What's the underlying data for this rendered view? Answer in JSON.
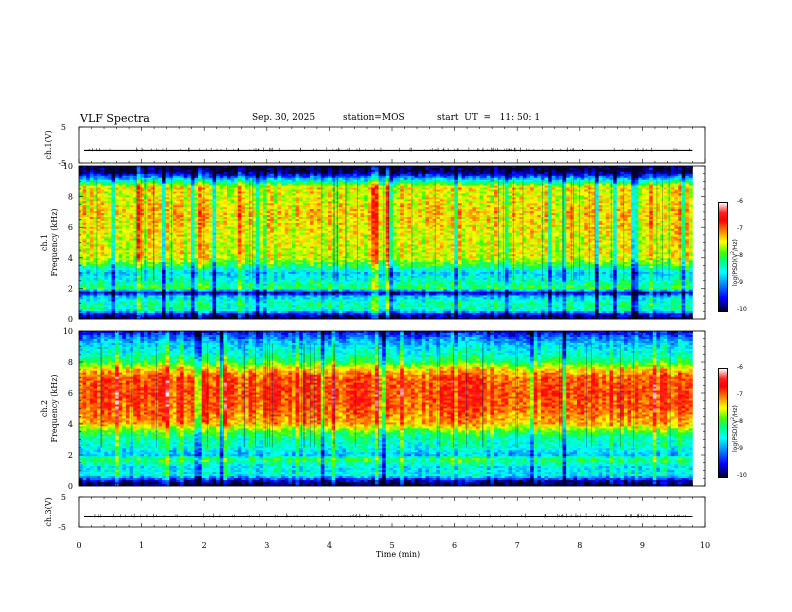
{
  "header": {
    "title": "VLF Spectra",
    "date": "Sep. 30, 2025",
    "station": "station=MOS",
    "start": "start  UT  =   11: 50: 1"
  },
  "chart_data": [
    {
      "type": "line",
      "panel": "ch1-voltage",
      "ylabel": "ch.1(V)",
      "ylim": [
        -5,
        5
      ],
      "yticks": [
        "5",
        "-5"
      ],
      "values_summary": {
        "baseline": -1.5
      },
      "color": "#000000"
    },
    {
      "type": "heatmap",
      "panel": "ch1-spectrogram",
      "ylabel": "ch.1\nFrequency (kHz)",
      "ylabel_lines": [
        "ch.1",
        "Frequency (kHz)"
      ],
      "xlim": [
        0,
        10
      ],
      "x_extent_min": 9.8,
      "ylim": [
        0,
        10
      ],
      "yticks": [
        "0",
        "2",
        "4",
        "6",
        "8",
        "10"
      ],
      "colorbar": {
        "label": "log(PSD)(V²/Hz)",
        "label_pre": "log(PSD)(V",
        "label_sup": "2",
        "label_post": "/Hz)",
        "range": [
          -10,
          -6
        ],
        "ticks": [
          "-6",
          "-7",
          "-8",
          "-9",
          "-10"
        ]
      },
      "frequency_profile_kHz": [
        [
          0.0,
          -10.0
        ],
        [
          0.3,
          -9.6
        ],
        [
          0.6,
          -8.4
        ],
        [
          1.0,
          -8.3
        ],
        [
          1.5,
          -8.8
        ],
        [
          1.7,
          -9.8
        ],
        [
          2.0,
          -8.0
        ],
        [
          2.5,
          -8.4
        ],
        [
          3.0,
          -8.7
        ],
        [
          3.5,
          -8.0
        ],
        [
          4.0,
          -7.5
        ],
        [
          5.0,
          -7.5
        ],
        [
          6.0,
          -7.4
        ],
        [
          7.0,
          -7.3
        ],
        [
          8.0,
          -7.5
        ],
        [
          8.6,
          -7.4
        ],
        [
          9.0,
          -8.4
        ],
        [
          9.3,
          -9.2
        ],
        [
          9.6,
          -9.9
        ],
        [
          10.0,
          -10.0
        ]
      ]
    },
    {
      "type": "heatmap",
      "panel": "ch2-spectrogram",
      "ylabel": "ch.2\nFrequency (kHz)",
      "ylabel_lines": [
        "ch.2",
        "Frequency (kHz)"
      ],
      "xlim": [
        0,
        10
      ],
      "x_extent_min": 9.8,
      "ylim": [
        0,
        10
      ],
      "yticks": [
        "0",
        "2",
        "4",
        "6",
        "8",
        "10"
      ],
      "colorbar": {
        "label": "log(PSD)(V²/Hz)",
        "label_pre": "log(PSD)(V",
        "label_sup": "2",
        "label_post": "/Hz)",
        "range": [
          -10,
          -6
        ],
        "ticks": [
          "-6",
          "-7",
          "-8",
          "-9",
          "-10"
        ]
      },
      "frequency_profile_kHz": [
        [
          0.0,
          -10.0
        ],
        [
          0.3,
          -9.7
        ],
        [
          0.7,
          -8.5
        ],
        [
          1.2,
          -8.6
        ],
        [
          1.7,
          -8.0
        ],
        [
          2.0,
          -8.8
        ],
        [
          2.5,
          -8.4
        ],
        [
          3.0,
          -8.3
        ],
        [
          3.5,
          -7.9
        ],
        [
          4.0,
          -7.2
        ],
        [
          5.0,
          -6.9
        ],
        [
          6.0,
          -6.8
        ],
        [
          7.0,
          -6.9
        ],
        [
          7.6,
          -7.4
        ],
        [
          8.0,
          -8.0
        ],
        [
          8.5,
          -8.4
        ],
        [
          9.0,
          -8.6
        ],
        [
          9.5,
          -9.0
        ],
        [
          10.0,
          -9.6
        ]
      ]
    },
    {
      "type": "line",
      "panel": "ch3-voltage",
      "ylabel": "ch.3(V)",
      "ylim": [
        -5,
        5
      ],
      "yticks": [
        "5",
        "-5"
      ],
      "values_summary": {
        "baseline": -1.5
      },
      "color": "#000000"
    }
  ],
  "xaxis": {
    "label": "Time  (min)",
    "xlim": [
      0,
      10
    ],
    "ticks": [
      "0",
      "1",
      "2",
      "3",
      "4",
      "5",
      "6",
      "7",
      "8",
      "9",
      "10"
    ]
  }
}
